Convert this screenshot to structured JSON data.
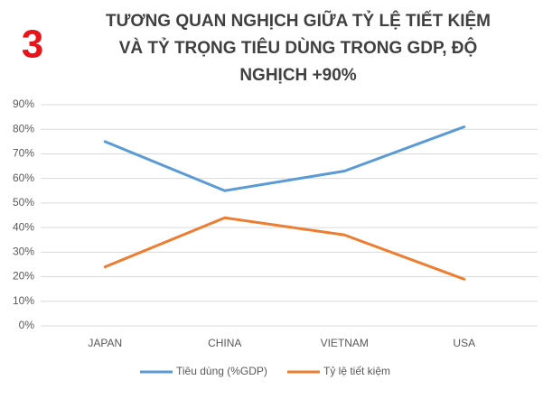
{
  "badge": "3",
  "chart_data": {
    "type": "line",
    "title": [
      "TƯƠNG QUAN NGHỊCH GIỮA TỶ LỆ TIẾT KIỆM",
      "VÀ TỶ TRỌNG TIÊU DÙNG TRONG GDP, ĐỘ",
      "NGHỊCH +90%"
    ],
    "categories": [
      "JAPAN",
      "CHINA",
      "VIETNAM",
      "USA"
    ],
    "series": [
      {
        "name": "Tiêu dùng (%GDP)",
        "color": "#5b9bd5",
        "values": [
          75,
          55,
          63,
          81
        ]
      },
      {
        "name": "Tỷ lệ tiết kiệm",
        "color": "#ed7d31",
        "values": [
          24,
          44,
          37,
          19
        ]
      }
    ],
    "ylim": [
      0,
      90
    ],
    "yticks": [
      {
        "value": 0,
        "label": "0%"
      },
      {
        "value": 10,
        "label": "10%"
      },
      {
        "value": 20,
        "label": "20%"
      },
      {
        "value": 30,
        "label": "30%"
      },
      {
        "value": 40,
        "label": "40%"
      },
      {
        "value": 50,
        "label": "50%"
      },
      {
        "value": 60,
        "label": "60%"
      },
      {
        "value": 70,
        "label": "70%"
      },
      {
        "value": 80,
        "label": "80%"
      },
      {
        "value": 90,
        "label": "90%"
      }
    ],
    "grid": true,
    "legend": "bottom"
  }
}
